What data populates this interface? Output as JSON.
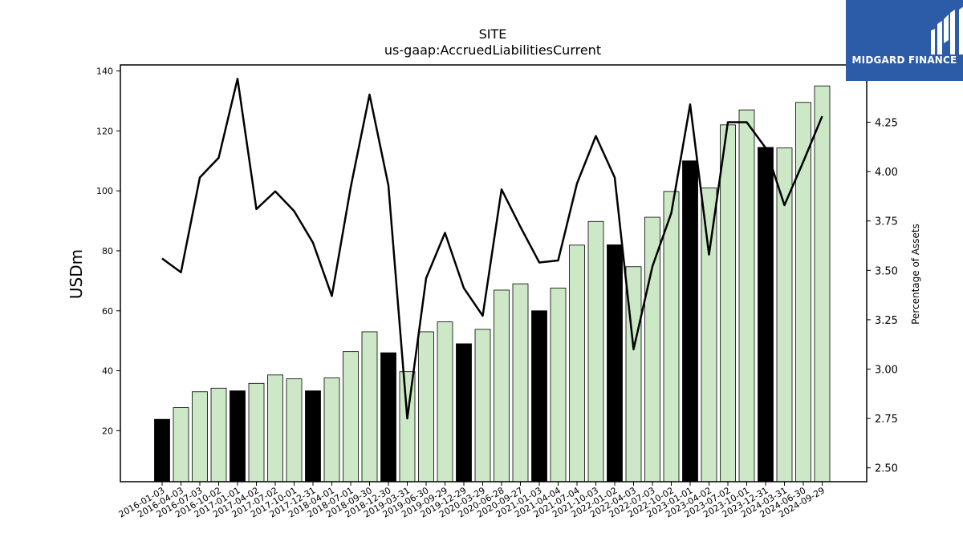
{
  "chart_data": {
    "type": "bar",
    "title": "SITE",
    "subtitle": "us-gaap:AccruedLiabilitiesCurrent",
    "ylabel": "USDm",
    "y2label": "Percentage of Assets",
    "ylim": [
      3,
      142
    ],
    "y2lim": [
      2.43,
      4.54
    ],
    "yticks": [
      20,
      40,
      60,
      80,
      100,
      120,
      140
    ],
    "y2ticks": [
      "2.50",
      "2.75",
      "3.00",
      "3.25",
      "3.50",
      "3.75",
      "4.00",
      "4.25"
    ],
    "categories": [
      "2016-01-03",
      "2016-04-03",
      "2016-07-03",
      "2016-10-02",
      "2017-01-01",
      "2017-04-02",
      "2017-07-02",
      "2017-10-01",
      "2017-12-31",
      "2018-04-01",
      "2018-07-01",
      "2018-09-30",
      "2018-12-30",
      "2019-03-31",
      "2019-06-30",
      "2019-09-29",
      "2019-12-29",
      "2020-03-29",
      "2020-06-28",
      "2020-09-27",
      "2021-01-03",
      "2021-04-04",
      "2021-07-04",
      "2021-10-03",
      "2022-01-02",
      "2022-04-03",
      "2022-07-03",
      "2022-10-02",
      "2023-01-01",
      "2023-04-02",
      "2023-07-02",
      "2023-10-01",
      "2023-12-31",
      "2024-03-31",
      "2024-06-30",
      "2024-09-29"
    ],
    "values": [
      23.8,
      27.7,
      33.0,
      34.2,
      33.3,
      35.8,
      38.6,
      37.3,
      33.3,
      37.6,
      46.4,
      53.0,
      46.0,
      39.7,
      53.0,
      56.3,
      49.0,
      53.8,
      66.9,
      69.0,
      60.0,
      67.6,
      81.9,
      89.8,
      82.0,
      74.7,
      91.2,
      99.8,
      110.0,
      101.0,
      122.0,
      127.0,
      114.5,
      114.3,
      129.5,
      135.0
    ],
    "highlight": [
      true,
      false,
      false,
      false,
      true,
      false,
      false,
      false,
      true,
      false,
      false,
      false,
      true,
      false,
      false,
      false,
      true,
      false,
      false,
      false,
      true,
      false,
      false,
      false,
      true,
      false,
      false,
      false,
      true,
      false,
      false,
      false,
      true,
      false,
      false,
      false
    ],
    "line_series": {
      "axis": "right",
      "values": [
        3.56,
        3.49,
        3.97,
        4.07,
        4.47,
        3.81,
        3.9,
        3.8,
        3.64,
        3.37,
        3.92,
        4.39,
        3.93,
        2.75,
        3.46,
        3.69,
        3.41,
        3.27,
        3.91,
        3.72,
        3.54,
        3.55,
        3.94,
        4.18,
        3.97,
        3.1,
        3.52,
        3.79,
        4.34,
        3.58,
        4.25,
        4.25,
        4.12,
        3.83,
        4.05,
        4.28
      ]
    },
    "colors": {
      "bar": "#cce8c6",
      "bar_highlight": "#000000",
      "line": "#000000"
    }
  },
  "logo": {
    "text": "MIDGARD FINANCE",
    "bg_color": "#2c5ba8",
    "fg_color": "#ffffff"
  }
}
